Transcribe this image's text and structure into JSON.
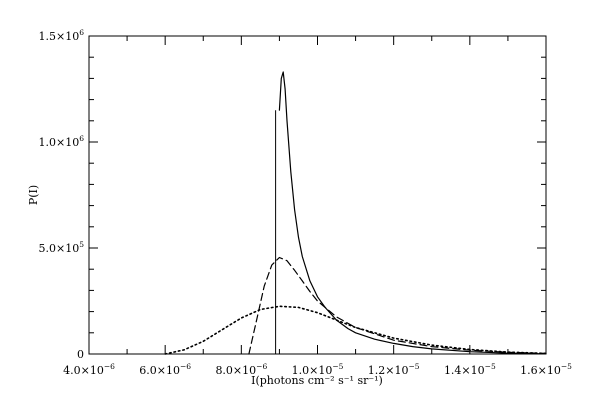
{
  "chart_data": {
    "type": "line",
    "title": "",
    "xlabel": "I(photons cm⁻² s⁻¹ sr⁻¹)",
    "ylabel": "P(I)",
    "xlim": [
      4e-06,
      1.6e-05
    ],
    "ylim": [
      0,
      1500000.0
    ],
    "x_tick_labels": [
      {
        "value": 4e-06,
        "mantissa": "4.0×10",
        "exponent": "−6"
      },
      {
        "value": 6e-06,
        "mantissa": "6.0×10",
        "exponent": "−6"
      },
      {
        "value": 8e-06,
        "mantissa": "8.0×10",
        "exponent": "−6"
      },
      {
        "value": 1e-05,
        "mantissa": "1.0×10",
        "exponent": "−5"
      },
      {
        "value": 1.2e-05,
        "mantissa": "1.2×10",
        "exponent": "−5"
      },
      {
        "value": 1.4e-05,
        "mantissa": "1.4×10",
        "exponent": "−5"
      },
      {
        "value": 1.6e-05,
        "mantissa": "1.6×10",
        "exponent": "−5"
      }
    ],
    "y_tick_labels": [
      {
        "value": 0,
        "mantissa": "0",
        "exponent": ""
      },
      {
        "value": 500000.0,
        "mantissa": "5.0×10",
        "exponent": "5"
      },
      {
        "value": 1000000.0,
        "mantissa": "1.0×10",
        "exponent": "6"
      },
      {
        "value": 1500000.0,
        "mantissa": "1.5×10",
        "exponent": "6"
      }
    ],
    "series": [
      {
        "style": "solid",
        "x": [
          9e-06,
          9.05e-06,
          9.1e-06,
          9.15e-06,
          9.2e-06,
          9.3e-06,
          9.4e-06,
          9.5e-06,
          9.6e-06,
          9.8e-06,
          1e-05,
          1.02e-05,
          1.05e-05,
          1.08e-05,
          1.1e-05,
          1.15e-05,
          1.2e-05,
          1.25e-05,
          1.3e-05,
          1.4e-05,
          1.5e-05,
          1.6e-05
        ],
        "y": [
          1150000.0,
          1300000.0,
          1330000.0,
          1250000.0,
          1100000.0,
          860000.0,
          680000.0,
          550000.0,
          460000.0,
          345000.0,
          270000.0,
          220000.0,
          160000.0,
          120000.0,
          100000.0,
          70000.0,
          50000.0,
          35000.0,
          24000.0,
          11000.0,
          4000.0,
          1000.0
        ]
      },
      {
        "style": "dashed",
        "x": [
          8.2e-06,
          8.4e-06,
          8.6e-06,
          8.8e-06,
          9e-06,
          9.2e-06,
          9.4e-06,
          9.6e-06,
          9.8e-06,
          1e-05,
          1.05e-05,
          1.1e-05,
          1.2e-05,
          1.3e-05,
          1.4e-05,
          1.5e-05,
          1.6e-05
        ],
        "y": [
          0,
          160000.0,
          320000.0,
          420000.0,
          455000.0,
          440000.0,
          395000.0,
          345000.0,
          295000.0,
          250000.0,
          175000.0,
          125000.0,
          65000.0,
          35000.0,
          18000.0,
          8000.0,
          3000.0
        ]
      },
      {
        "style": "dotted",
        "x": [
          6e-06,
          6.5e-06,
          7e-06,
          7.5e-06,
          8e-06,
          8.5e-06,
          9e-06,
          9.5e-06,
          1e-05,
          1.05e-05,
          1.1e-05,
          1.2e-05,
          1.3e-05,
          1.4e-05,
          1.5e-05,
          1.6e-05
        ],
        "y": [
          0,
          20000.0,
          60000.0,
          115000.0,
          170000.0,
          210000.0,
          225000.0,
          220000.0,
          195000.0,
          160000.0,
          125000.0,
          75000.0,
          42000.0,
          21000.0,
          9000.0,
          3000.0
        ]
      }
    ],
    "reference_line": {
      "x": 8.9e-06,
      "y_top": 1150000.0
    },
    "grid": false,
    "legend": "none"
  }
}
